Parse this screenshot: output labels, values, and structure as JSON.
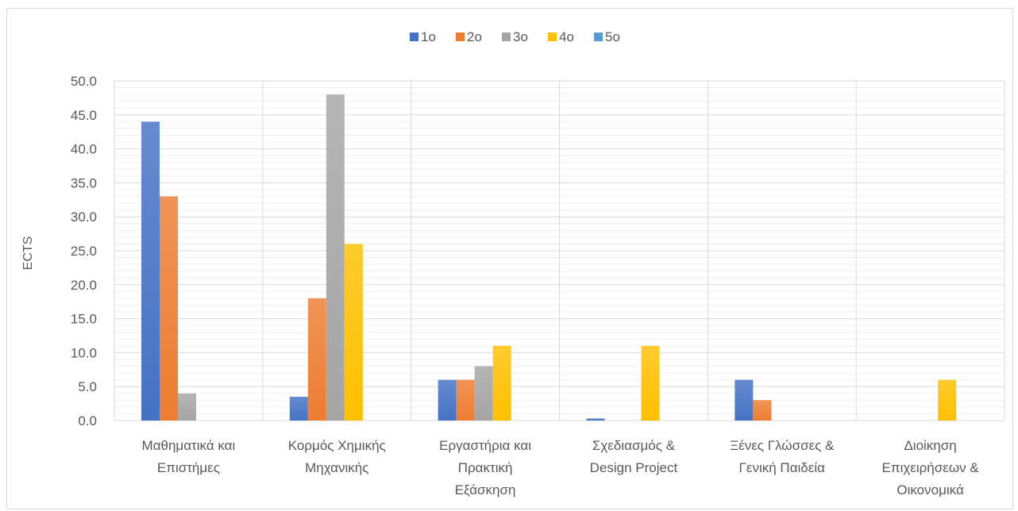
{
  "chart_data": {
    "type": "bar",
    "title": "",
    "xlabel": "",
    "ylabel": "ECTS",
    "ylim": [
      0,
      50
    ],
    "yticks": [
      "0.0",
      "5.0",
      "10.0",
      "15.0",
      "20.0",
      "25.0",
      "30.0",
      "35.0",
      "40.0",
      "45.0",
      "50.0"
    ],
    "grid": true,
    "legend_position": "top",
    "categories": [
      [
        "Μαθηματικά και",
        "Επιστήμες"
      ],
      [
        "Κορμός Χημικής",
        "Μηχανικής"
      ],
      [
        "Εργαστήρια και",
        "Πρακτική",
        "Εξάσκηση"
      ],
      [
        "Σχεδιασμός &",
        "Design Project"
      ],
      [
        "Ξένες Γλώσσες &",
        "Γενική Παιδεία"
      ],
      [
        "Διοίκηση",
        "Επιχειρήσεων &",
        "Οικονομικά"
      ]
    ],
    "series": [
      {
        "name": "1ο",
        "color": "#4472c4",
        "values": [
          44.0,
          3.5,
          6.0,
          0.3,
          6.0,
          0
        ]
      },
      {
        "name": "2ο",
        "color": "#ed7d31",
        "values": [
          33.0,
          18.0,
          6.0,
          0,
          3.0,
          0
        ]
      },
      {
        "name": "3ο",
        "color": "#a5a5a5",
        "values": [
          4.0,
          48.0,
          8.0,
          0,
          0,
          0
        ]
      },
      {
        "name": "4ο",
        "color": "#ffc000",
        "values": [
          0,
          26.0,
          11.0,
          11.0,
          0,
          6.0
        ]
      },
      {
        "name": "5ο",
        "color": "#5b9bd5",
        "values": [
          0,
          0,
          0,
          0,
          0,
          0
        ]
      }
    ]
  }
}
